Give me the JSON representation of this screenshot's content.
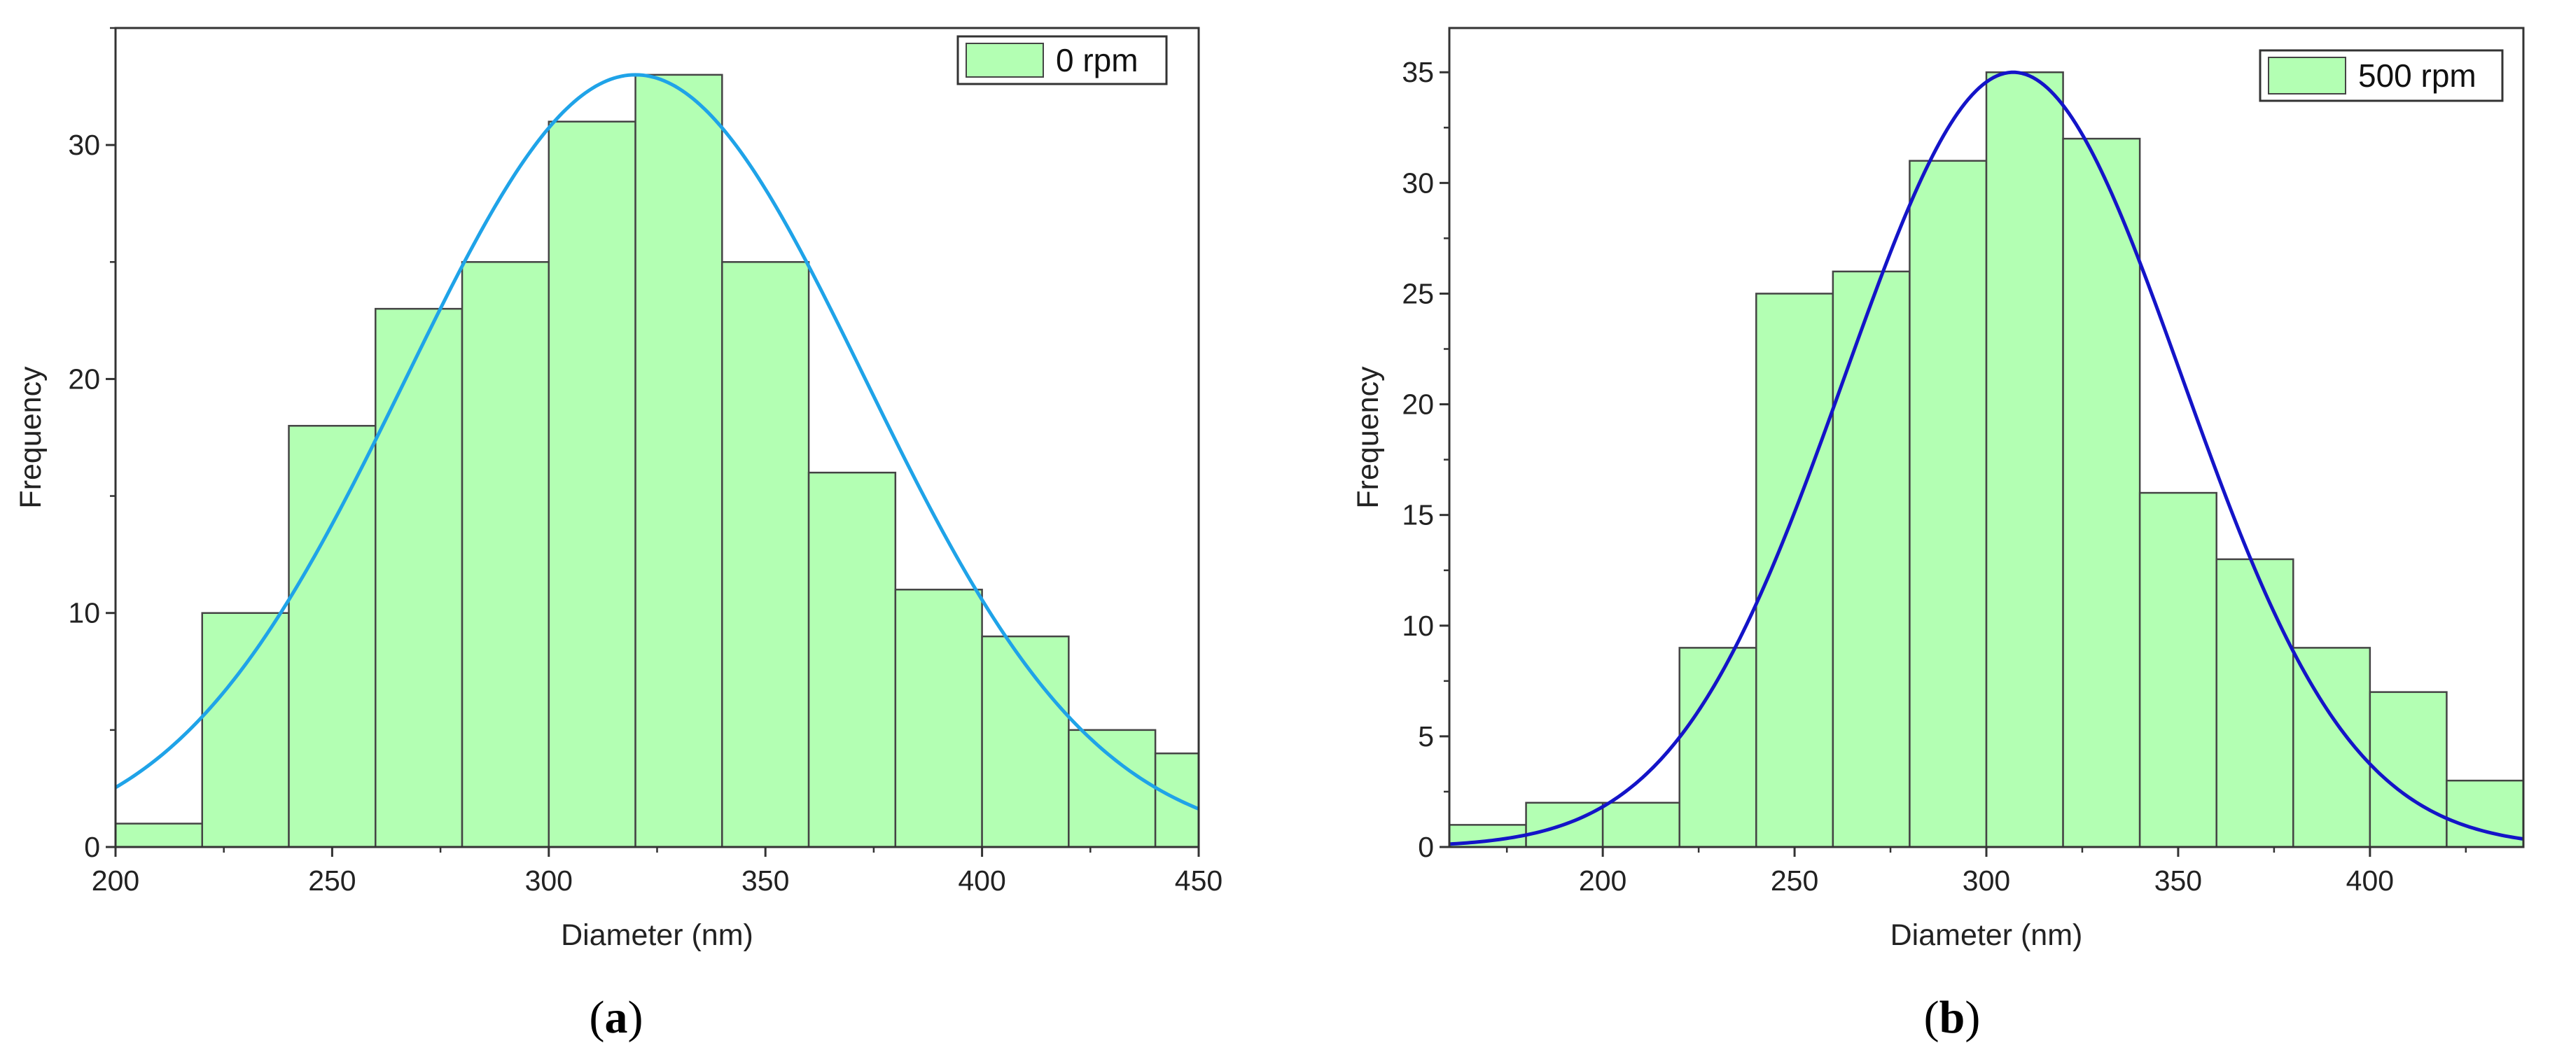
{
  "colors": {
    "bar_fill": "#b3ffb3",
    "bar_edge": "#444444",
    "curve_a": "#1fa3e8",
    "curve_b": "#1414c8"
  },
  "chart_data": [
    {
      "type": "bar",
      "id": "a",
      "panel_label": "a",
      "legend": "0 rpm",
      "xlabel": "Diameter (nm)",
      "ylabel": "Frequency",
      "xlim": [
        200,
        450
      ],
      "ylim": [
        0,
        35
      ],
      "xticks": [
        200,
        250,
        300,
        350,
        400,
        450
      ],
      "yticks": [
        0,
        10,
        20,
        30
      ],
      "bin_width": 20,
      "bins": [
        {
          "start": 200,
          "end": 220,
          "value": 1
        },
        {
          "start": 220,
          "end": 240,
          "value": 10
        },
        {
          "start": 240,
          "end": 260,
          "value": 18
        },
        {
          "start": 260,
          "end": 280,
          "value": 23
        },
        {
          "start": 280,
          "end": 300,
          "value": 25
        },
        {
          "start": 300,
          "end": 320,
          "value": 31
        },
        {
          "start": 320,
          "end": 340,
          "value": 33
        },
        {
          "start": 340,
          "end": 360,
          "value": 25
        },
        {
          "start": 360,
          "end": 380,
          "value": 16
        },
        {
          "start": 380,
          "end": 400,
          "value": 11
        },
        {
          "start": 400,
          "end": 420,
          "value": 9
        },
        {
          "start": 420,
          "end": 440,
          "value": 5
        },
        {
          "start": 440,
          "end": 450,
          "value": 4
        }
      ],
      "fit": {
        "type": "normal",
        "mean": 320,
        "sd": 53,
        "peak": 33
      }
    },
    {
      "type": "bar",
      "id": "b",
      "panel_label": "b",
      "legend": "500 rpm",
      "xlabel": "Diameter (nm)",
      "ylabel": "Frequency",
      "xlim": [
        160,
        440
      ],
      "ylim": [
        0,
        37
      ],
      "xticks": [
        200,
        250,
        300,
        350,
        400
      ],
      "yticks": [
        0,
        5,
        10,
        15,
        20,
        25,
        30,
        35
      ],
      "bin_width": 20,
      "bins": [
        {
          "start": 160,
          "end": 180,
          "value": 1
        },
        {
          "start": 180,
          "end": 200,
          "value": 2
        },
        {
          "start": 200,
          "end": 220,
          "value": 2
        },
        {
          "start": 220,
          "end": 240,
          "value": 9
        },
        {
          "start": 240,
          "end": 260,
          "value": 25
        },
        {
          "start": 260,
          "end": 280,
          "value": 26
        },
        {
          "start": 280,
          "end": 300,
          "value": 31
        },
        {
          "start": 300,
          "end": 320,
          "value": 35
        },
        {
          "start": 320,
          "end": 340,
          "value": 32
        },
        {
          "start": 340,
          "end": 360,
          "value": 16
        },
        {
          "start": 360,
          "end": 380,
          "value": 13
        },
        {
          "start": 380,
          "end": 400,
          "value": 9
        },
        {
          "start": 400,
          "end": 420,
          "value": 7
        },
        {
          "start": 420,
          "end": 440,
          "value": 3
        }
      ],
      "fit": {
        "type": "normal",
        "mean": 307,
        "sd": 44,
        "peak": 35
      }
    }
  ]
}
